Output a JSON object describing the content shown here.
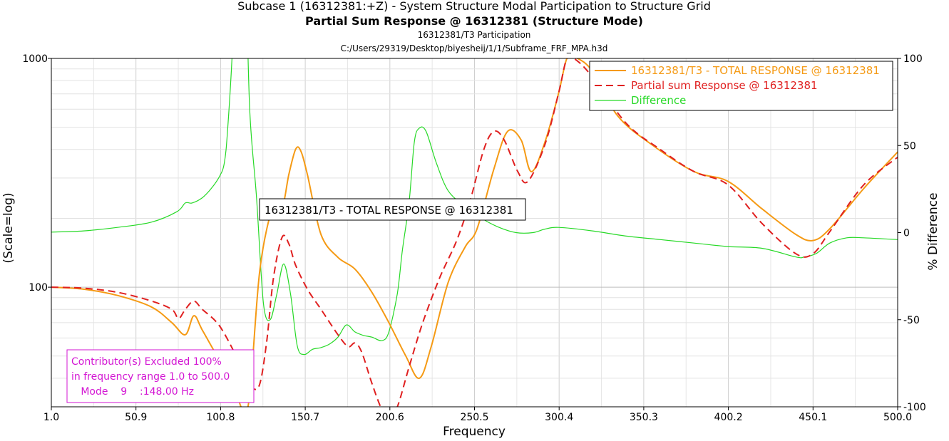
{
  "titles": {
    "line1": "Subcase 1 (16312381:+Z) - System Structure Modal Participation to Structure Grid",
    "line2": "Partial Sum Response @ 16312381 (Structure Mode)",
    "line3": "16312381/T3 Participation",
    "line4": "C:/Users/29319/Desktop/biyesheij/1/1/Subframe_FRF_MPA.h3d"
  },
  "chart_data": {
    "type": "line",
    "xlabel": "Frequency",
    "ylabel": "(Scale=log)",
    "y2label": "% Difference",
    "xlim": [
      1.0,
      500.0
    ],
    "ylim": [
      30,
      1000
    ],
    "yscale": "log",
    "y2lim": [
      -100,
      100
    ],
    "x_ticks": [
      "1.0",
      "50.9",
      "100.8",
      "150.7",
      "200.6",
      "250.5",
      "300.4",
      "350.3",
      "400.2",
      "450.1",
      "500.0"
    ],
    "y_ticks": [
      "1000",
      "100"
    ],
    "y2_ticks": [
      "100",
      "50",
      "0",
      "-50",
      "-100"
    ],
    "grid": true,
    "legend_position": "top-right",
    "series": [
      {
        "name": "16312381/T3 - TOTAL RESPONSE @ 16312381",
        "color": "#f59a14",
        "style": "solid",
        "axis": "left",
        "x": [
          1,
          20,
          40,
          60,
          72,
          80,
          85,
          90,
          100,
          108,
          114,
          118,
          124,
          132,
          137,
          141,
          145,
          148,
          152,
          160,
          170,
          180,
          190,
          200,
          210,
          218,
          225,
          235,
          245,
          252,
          262,
          270,
          278,
          284,
          292,
          300,
          305,
          310,
          320,
          335,
          355,
          380,
          400,
          420,
          440,
          450,
          460,
          480,
          500
        ],
        "y": [
          100,
          98,
          92,
          82,
          70,
          62,
          75,
          65,
          48,
          38,
          29,
          34,
          120,
          230,
          220,
          310,
          400,
          395,
          310,
          170,
          135,
          120,
          95,
          70,
          50,
          40,
          55,
          105,
          150,
          180,
          330,
          480,
          440,
          320,
          430,
          700,
          1000,
          1010,
          880,
          560,
          420,
          320,
          290,
          220,
          170,
          160,
          180,
          270,
          390
        ]
      },
      {
        "name": "Partial sum Response @ 16312381",
        "color": "#e02020",
        "style": "dashed",
        "axis": "left",
        "x": [
          1,
          20,
          40,
          60,
          72,
          76,
          80,
          85,
          90,
          100,
          110,
          116,
          120,
          124,
          128,
          132,
          137,
          141,
          145,
          152,
          160,
          170,
          176,
          180,
          184,
          190,
          196,
          200,
          205,
          212,
          220,
          230,
          240,
          248,
          256,
          262,
          268,
          276,
          282,
          292,
          300,
          305,
          310,
          320,
          340,
          360,
          380,
          400,
          420,
          440,
          450,
          460,
          480,
          500
        ],
        "y": [
          100,
          99,
          95,
          87,
          80,
          73,
          80,
          87,
          80,
          68,
          50,
          40,
          36,
          38,
          58,
          110,
          165,
          155,
          125,
          98,
          80,
          62,
          55,
          57,
          52,
          38,
          29,
          27,
          30,
          45,
          70,
          110,
          160,
          240,
          400,
          480,
          440,
          320,
          290,
          420,
          700,
          1000,
          990,
          830,
          520,
          400,
          320,
          280,
          190,
          140,
          140,
          175,
          280,
          370
        ]
      },
      {
        "name": "Difference",
        "color": "#27d927",
        "style": "solid",
        "axis": "right",
        "x": [
          1,
          20,
          40,
          60,
          75,
          80,
          84,
          90,
          95,
          100,
          103,
          105,
          108,
          110,
          115,
          118,
          122,
          126,
          130,
          134,
          138,
          142,
          146,
          150,
          155,
          160,
          165,
          170,
          175,
          180,
          185,
          190,
          196,
          200,
          205,
          208,
          212,
          215,
          218,
          222,
          228,
          235,
          245,
          255,
          265,
          275,
          285,
          292,
          300,
          320,
          340,
          360,
          380,
          400,
          420,
          440,
          445,
          452,
          460,
          470,
          480,
          500
        ],
        "y": [
          0.3,
          1,
          3,
          6,
          12,
          17,
          17,
          20,
          25,
          32,
          40,
          60,
          110,
          175,
          160,
          70,
          20,
          -40,
          -50,
          -35,
          -18,
          -35,
          -65,
          -70,
          -67,
          -66,
          -64,
          -60,
          -53,
          -57,
          -59,
          -60,
          -62,
          -57,
          -35,
          -10,
          18,
          52,
          60,
          58,
          40,
          24,
          15,
          8,
          3,
          0,
          0,
          2,
          3,
          1,
          -2,
          -4,
          -6,
          -8,
          -9,
          -14,
          -14,
          -12,
          -6,
          -3,
          -3,
          -4
        ]
      }
    ],
    "annotations": {
      "tooltip": "16312381/T3 - TOTAL RESPONSE @ 16312381",
      "note_lines": [
        "Contributor(s) Excluded 100%",
        "in frequency range 1.0 to 500.0",
        "   Mode    9    :148.00 Hz"
      ]
    }
  }
}
